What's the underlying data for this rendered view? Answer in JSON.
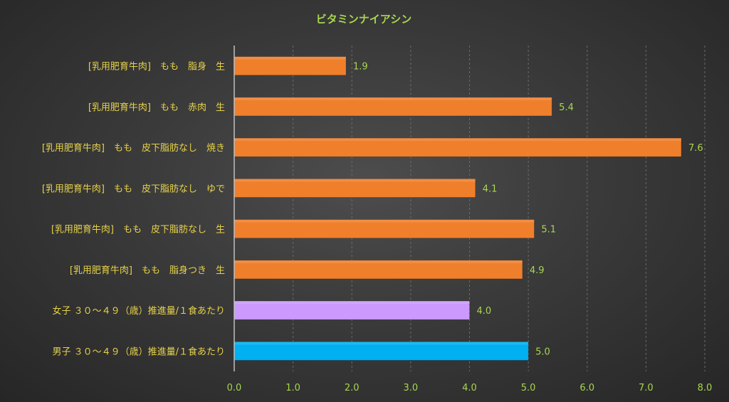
{
  "chart_data": {
    "type": "bar",
    "orientation": "horizontal",
    "title": "ビタミンナイアシン",
    "categories": [
      "[乳用肥育牛肉]　もも　脂身　生",
      "[乳用肥育牛肉]　もも　赤肉　生",
      "[乳用肥育牛肉]　もも　皮下脂肪なし　焼き",
      "[乳用肥育牛肉]　もも　皮下脂肪なし　ゆで",
      "[乳用肥育牛肉]　もも　皮下脂肪なし　生",
      "[乳用肥育牛肉]　もも　脂身つき　生",
      "女子 ３０～４９（歳）推進量/１食あたり",
      "男子 ３０～４９（歳）推進量/１食あたり"
    ],
    "values": [
      1.9,
      5.4,
      7.6,
      4.1,
      5.1,
      4.9,
      4.0,
      5.0
    ],
    "value_labels": [
      "1.9",
      "5.4",
      "7.6",
      "4.1",
      "5.1",
      "4.9",
      "4.0",
      "5.0"
    ],
    "bar_colors": [
      "#f07f2c",
      "#f07f2c",
      "#f07f2c",
      "#f07f2c",
      "#f07f2c",
      "#f07f2c",
      "#cc99ff",
      "#00b0f0"
    ],
    "xlim": [
      0,
      8
    ],
    "xticks": [
      "0.0",
      "1.0",
      "2.0",
      "3.0",
      "4.0",
      "5.0",
      "6.0",
      "7.0",
      "8.0"
    ],
    "grid": true,
    "legend": "none"
  }
}
